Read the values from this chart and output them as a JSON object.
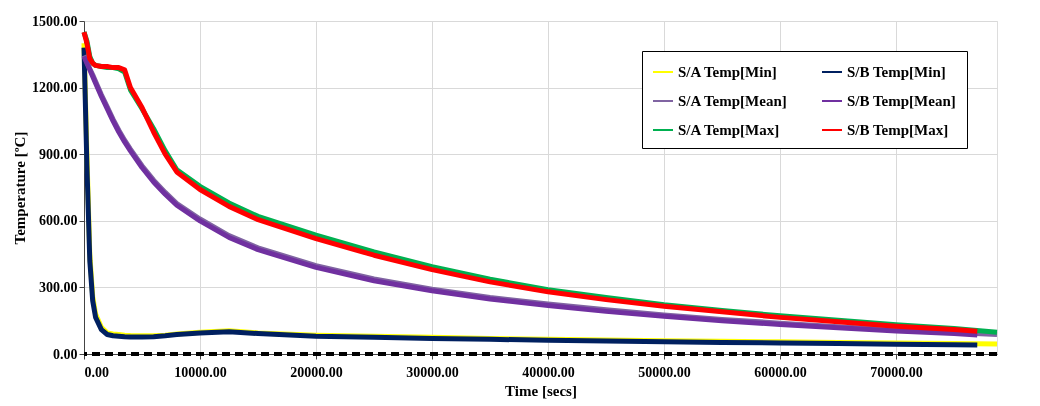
{
  "chart_data": {
    "type": "line",
    "xlabel": "Time [secs]",
    "ylabel": "Temperature [ºC]",
    "xlim": [
      0,
      78700
    ],
    "ylim": [
      0,
      1500
    ],
    "xticks": [
      {
        "value": 0,
        "label": "0.00"
      },
      {
        "value": 10000,
        "label": "10000.00"
      },
      {
        "value": 20000,
        "label": "20000.00"
      },
      {
        "value": 30000,
        "label": "30000.00"
      },
      {
        "value": 40000,
        "label": "40000.00"
      },
      {
        "value": 50000,
        "label": "50000.00"
      },
      {
        "value": 60000,
        "label": "60000.00"
      },
      {
        "value": 70000,
        "label": "70000.00"
      }
    ],
    "yticks": [
      {
        "value": 0,
        "label": "0.00"
      },
      {
        "value": 300,
        "label": "300.00"
      },
      {
        "value": 600,
        "label": "600.00"
      },
      {
        "value": 900,
        "label": "900.00"
      },
      {
        "value": 1200,
        "label": "1200.00"
      },
      {
        "value": 1500,
        "label": "1500.00"
      }
    ],
    "grid": true,
    "legend": "top right",
    "ref_lines": [
      {
        "axis": "y",
        "value": 0,
        "color": "#000000",
        "line_style": "dashed"
      }
    ],
    "series": [
      {
        "name": "S/A Temp[Min]",
        "color": "#ffff00",
        "x": [
          0,
          250,
          500,
          750,
          1000,
          1500,
          2000,
          2500,
          3000,
          3500,
          4000,
          5000,
          6000,
          7000,
          8000,
          10000,
          12500,
          15000,
          20000,
          25000,
          30000,
          35000,
          40000,
          45000,
          50000,
          55000,
          60000,
          65000,
          70000,
          75000,
          78700
        ],
        "values": [
          1400,
          900,
          450,
          260,
          180,
          120,
          95,
          90,
          88,
          85,
          83,
          82,
          82,
          85,
          90,
          98,
          105,
          95,
          85,
          80,
          75,
          70,
          67,
          63,
          60,
          57,
          55,
          52,
          50,
          47,
          45
        ]
      },
      {
        "name": "S/B Temp[Min]",
        "color": "#002060",
        "x": [
          0,
          250,
          500,
          750,
          1000,
          1500,
          2000,
          2500,
          3000,
          3500,
          4000,
          5000,
          6000,
          7000,
          8000,
          10000,
          12500,
          15000,
          20000,
          25000,
          30000,
          35000,
          40000,
          45000,
          50000,
          55000,
          60000,
          65000,
          70000,
          75000,
          77000
        ],
        "values": [
          1380,
          850,
          420,
          240,
          165,
          110,
          88,
          82,
          80,
          78,
          77,
          77,
          78,
          82,
          88,
          95,
          100,
          92,
          80,
          75,
          70,
          66,
          62,
          58,
          55,
          52,
          50,
          47,
          44,
          42,
          40
        ]
      },
      {
        "name": "S/A Temp[Mean]",
        "color": "#8064a2",
        "x": [
          0,
          250,
          500,
          750,
          1000,
          1500,
          2000,
          2500,
          3000,
          3500,
          4000,
          5000,
          6000,
          7000,
          8000,
          10000,
          12500,
          15000,
          20000,
          25000,
          30000,
          35000,
          40000,
          45000,
          50000,
          55000,
          60000,
          65000,
          70000,
          75000,
          78700
        ],
        "values": [
          1345,
          1315,
          1285,
          1258,
          1228,
          1168,
          1113,
          1058,
          1008,
          963,
          923,
          848,
          783,
          728,
          678,
          608,
          533,
          478,
          398,
          338,
          292,
          255,
          225,
          199,
          176,
          156,
          139,
          123,
          109,
          97,
          88
        ]
      },
      {
        "name": "S/B Temp[Mean]",
        "color": "#7030a0",
        "x": [
          0,
          250,
          500,
          750,
          1000,
          1500,
          2000,
          2500,
          3000,
          3500,
          4000,
          5000,
          6000,
          7000,
          8000,
          10000,
          12500,
          15000,
          20000,
          25000,
          30000,
          35000,
          40000,
          45000,
          50000,
          55000,
          60000,
          65000,
          70000,
          75000,
          77000
        ],
        "values": [
          1340,
          1310,
          1280,
          1250,
          1220,
          1160,
          1105,
          1050,
          1000,
          955,
          915,
          840,
          775,
          720,
          670,
          600,
          525,
          470,
          390,
          330,
          285,
          248,
          218,
          192,
          170,
          150,
          133,
          118,
          104,
          92,
          85
        ]
      },
      {
        "name": "S/A Temp[Max]",
        "color": "#00b050",
        "x": [
          0,
          250,
          500,
          750,
          1000,
          1500,
          2000,
          2500,
          3000,
          3500,
          4000,
          5000,
          6000,
          7000,
          8000,
          10000,
          12500,
          15000,
          20000,
          25000,
          30000,
          35000,
          40000,
          45000,
          50000,
          55000,
          60000,
          65000,
          70000,
          75000,
          78700
        ],
        "values": [
          1450,
          1410,
          1340,
          1310,
          1300,
          1295,
          1290,
          1290,
          1285,
          1270,
          1190,
          1105,
          1015,
          915,
          830,
          755,
          680,
          620,
          535,
          460,
          393,
          337,
          290,
          255,
          222,
          196,
          172,
          152,
          132,
          115,
          98
        ]
      },
      {
        "name": "S/B Temp[Max]",
        "color": "#ff0000",
        "x": [
          0,
          250,
          500,
          750,
          1000,
          1500,
          2000,
          2500,
          3000,
          3500,
          4000,
          5000,
          6000,
          7000,
          8000,
          10000,
          12500,
          15000,
          20000,
          25000,
          30000,
          35000,
          40000,
          45000,
          50000,
          55000,
          60000,
          65000,
          70000,
          75000,
          77000
        ],
        "values": [
          1450,
          1400,
          1330,
          1310,
          1300,
          1295,
          1295,
          1290,
          1290,
          1280,
          1200,
          1110,
          1000,
          900,
          820,
          741,
          665,
          605,
          520,
          445,
          380,
          325,
          280,
          245,
          215,
          190,
          165,
          145,
          125,
          110,
          103
        ]
      }
    ]
  }
}
